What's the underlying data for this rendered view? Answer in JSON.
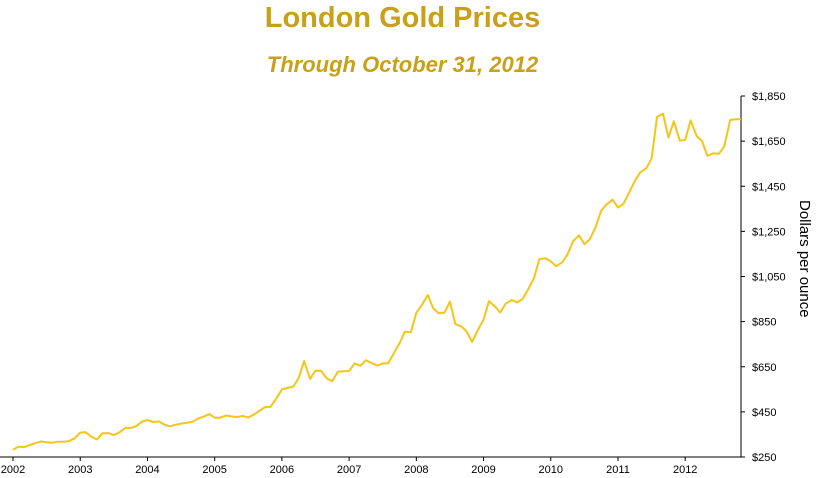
{
  "chart_data": {
    "type": "line",
    "title": "London Gold Prices",
    "subtitle": "Through October 31, 2012",
    "ylabel": "Dollars per ounce",
    "xlabel": "",
    "x_tick_labels": [
      "2002",
      "2003",
      "2004",
      "2005",
      "2006",
      "2007",
      "2008",
      "2009",
      "2010",
      "2011",
      "2012"
    ],
    "y_tick_labels": [
      "$250",
      "$450",
      "$650",
      "$850",
      "$1,050",
      "$1,250",
      "$1,450",
      "$1,650",
      "$1,850"
    ],
    "y_ticks": [
      250,
      450,
      650,
      850,
      1050,
      1250,
      1450,
      1650,
      1850
    ],
    "ylim": [
      250,
      1850
    ],
    "xlim": [
      2002.0,
      2012.83
    ],
    "grid": false,
    "line_color": "#F5C518",
    "series": [
      {
        "x": [
          2002.0,
          2002.08,
          2002.17,
          2002.25,
          2002.33,
          2002.42,
          2002.5,
          2002.58,
          2002.67,
          2002.75,
          2002.83,
          2002.92,
          2003.0,
          2003.08,
          2003.17,
          2003.25,
          2003.33,
          2003.42,
          2003.5,
          2003.58,
          2003.67,
          2003.75,
          2003.83,
          2003.92,
          2004.0,
          2004.08,
          2004.17,
          2004.25,
          2004.33,
          2004.42,
          2004.5,
          2004.58,
          2004.67,
          2004.75,
          2004.83,
          2004.92,
          2005.0,
          2005.08,
          2005.17,
          2005.25,
          2005.33,
          2005.42,
          2005.5,
          2005.58,
          2005.67,
          2005.75,
          2005.83,
          2005.92,
          2006.0,
          2006.08,
          2006.17,
          2006.25,
          2006.33,
          2006.42,
          2006.5,
          2006.58,
          2006.67,
          2006.75,
          2006.83,
          2006.92,
          2007.0,
          2007.08,
          2007.17,
          2007.25,
          2007.33,
          2007.42,
          2007.5,
          2007.58,
          2007.67,
          2007.75,
          2007.83,
          2007.92,
          2008.0,
          2008.08,
          2008.17,
          2008.25,
          2008.33,
          2008.42,
          2008.5,
          2008.58,
          2008.67,
          2008.75,
          2008.83,
          2008.92,
          2009.0,
          2009.08,
          2009.17,
          2009.25,
          2009.33,
          2009.42,
          2009.5,
          2009.58,
          2009.67,
          2009.75,
          2009.83,
          2009.92,
          2010.0,
          2010.08,
          2010.17,
          2010.25,
          2010.33,
          2010.42,
          2010.5,
          2010.58,
          2010.67,
          2010.75,
          2010.83,
          2010.92,
          2011.0,
          2011.08,
          2011.17,
          2011.25,
          2011.33,
          2011.42,
          2011.5,
          2011.58,
          2011.67,
          2011.75,
          2011.83,
          2011.92,
          2012.0,
          2012.08,
          2012.17,
          2012.25,
          2012.33,
          2012.42,
          2012.5,
          2012.58,
          2012.67,
          2012.75,
          2012.83
        ],
        "y": [
          282,
          296,
          294,
          303,
          311,
          319,
          315,
          313,
          318,
          318,
          320,
          333,
          358,
          360,
          339,
          328,
          355,
          356,
          347,
          359,
          379,
          379,
          386,
          407,
          414,
          405,
          408,
          394,
          386,
          393,
          398,
          401,
          406,
          420,
          428,
          440,
          424,
          424,
          434,
          430,
          427,
          432,
          425,
          438,
          455,
          471,
          473,
          510,
          550,
          556,
          562,
          600,
          675,
          596,
          633,
          632,
          598,
          586,
          628,
          630,
          631,
          665,
          654,
          679,
          667,
          655,
          665,
          665,
          712,
          754,
          806,
          803,
          889,
          923,
          968,
          909,
          888,
          890,
          939,
          839,
          829,
          806,
          760,
          816,
          858,
          941,
          917,
          890,
          930,
          946,
          935,
          950,
          997,
          1043,
          1127,
          1130,
          1117,
          1095,
          1113,
          1149,
          1205,
          1232,
          1193,
          1215,
          1271,
          1342,
          1370,
          1391,
          1356,
          1372,
          1424,
          1473,
          1512,
          1529,
          1572,
          1757,
          1772,
          1665,
          1738,
          1652,
          1656,
          1742,
          1673,
          1650,
          1585,
          1596,
          1594,
          1626,
          1744,
          1747,
          1747
        ]
      }
    ]
  }
}
